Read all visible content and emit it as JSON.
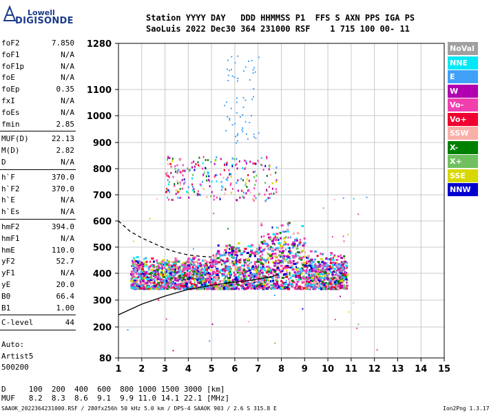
{
  "logo": {
    "line1": "Lowell",
    "line2": "DIGISONDE"
  },
  "header": {
    "row1": "Station YYYY DAY   DDD HHMMSS P1  FFS S AXN PPS IGA PS",
    "row2": "SaoLuis 2022 Dec30 364 231000 RSF    1 715 100 00- 11"
  },
  "params": {
    "group1": [
      {
        "label": "foF2",
        "value": "7.850"
      },
      {
        "label": "foF1",
        "value": "N/A"
      },
      {
        "label": "foF1p",
        "value": "N/A"
      },
      {
        "label": "foE",
        "value": "N/A"
      },
      {
        "label": "foEp",
        "value": "0.35"
      },
      {
        "label": "fxI",
        "value": "N/A"
      },
      {
        "label": "foEs",
        "value": "N/A"
      },
      {
        "label": "fmin",
        "value": "2.85"
      }
    ],
    "group2": [
      {
        "label": "MUF(D)",
        "value": "22.13"
      },
      {
        "label": "M(D)",
        "value": "2.82"
      },
      {
        "label": "D",
        "value": "N/A"
      }
    ],
    "group3": [
      {
        "label": "h`F",
        "value": "370.0"
      },
      {
        "label": "h`F2",
        "value": "370.0"
      },
      {
        "label": "h`E",
        "value": "N/A"
      },
      {
        "label": "h`Es",
        "value": "N/A"
      }
    ],
    "group4": [
      {
        "label": "hmF2",
        "value": "394.0"
      },
      {
        "label": "hmF1",
        "value": "N/A"
      },
      {
        "label": "hmE",
        "value": "110.0"
      },
      {
        "label": "yF2",
        "value": "52.7"
      },
      {
        "label": "yF1",
        "value": "N/A"
      },
      {
        "label": "yE",
        "value": "20.0"
      },
      {
        "label": "B0",
        "value": "66.4"
      },
      {
        "label": "B1",
        "value": "1.00"
      }
    ],
    "group5": [
      {
        "label": "C-level",
        "value": "44"
      }
    ],
    "auto": [
      "Auto:",
      "Artist5",
      "500200"
    ]
  },
  "legend": [
    {
      "label": "NoVal",
      "bg": "#a0a0a0",
      "fg": "#ffffff"
    },
    {
      "label": "NNE",
      "bg": "#00e8f8",
      "fg": "#ffffff"
    },
    {
      "label": "E",
      "bg": "#40a0f8",
      "fg": "#ffffff"
    },
    {
      "label": "W",
      "bg": "#b000b0",
      "fg": "#ffffff"
    },
    {
      "label": "Vo-",
      "bg": "#f040b0",
      "fg": "#ffffff"
    },
    {
      "label": "Vo+",
      "bg": "#f00030",
      "fg": "#ffffff"
    },
    {
      "label": "SSW",
      "bg": "#f8b0a8",
      "fg": "#ffffff"
    },
    {
      "label": "X-",
      "bg": "#008000",
      "fg": "#ffffff"
    },
    {
      "label": "X+",
      "bg": "#70c060",
      "fg": "#ffffff"
    },
    {
      "label": "SSE",
      "bg": "#d8d800",
      "fg": "#ffffff"
    },
    {
      "label": "NNW",
      "bg": "#0000d0",
      "fg": "#ffffff"
    }
  ],
  "footer": {
    "row1": "D     100  200  400  600  800 1000 1500 3000 [km]",
    "row2": "MUF   8.2  8.3  8.6  9.1  9.9 11.0 14.1 22.1 [MHz]",
    "row3": "SAAOK_2022364231000.RSF / 280fx256h 50 kHz 5.0 km / DPS-4 SAAOK 903 / 2.6 S 315.8 E",
    "version": "Ion2Png 1.3.17"
  },
  "chart_data": {
    "type": "scatter",
    "x": [
      1,
      2,
      3,
      4,
      5,
      6,
      7,
      8,
      9,
      10,
      11,
      12,
      13,
      14,
      15
    ],
    "xticks": [
      "1",
      "2",
      "3",
      "4",
      "5",
      "6",
      "7",
      "8",
      "9",
      "10",
      "11",
      "12",
      "13",
      "14",
      "15"
    ],
    "xlim": [
      1,
      15
    ],
    "ylim": [
      80,
      1280
    ],
    "yticks": [
      "80",
      "200",
      "300",
      "400",
      "500",
      "600",
      "700",
      "800",
      "900",
      "1000",
      "1100",
      "1280"
    ],
    "ytick_values": [
      80,
      200,
      300,
      400,
      500,
      600,
      700,
      800,
      900,
      1000,
      1100,
      1280
    ],
    "y_scale": "nonlinear-ionogram",
    "grid": true,
    "traces": [
      {
        "name": "O-trace",
        "x": [
          1.0,
          2.0,
          3.0,
          4.0,
          5.0,
          5.8,
          6.5,
          7.0,
          7.5,
          7.85
        ],
        "y": [
          245,
          285,
          315,
          340,
          355,
          365,
          372,
          378,
          385,
          394
        ]
      },
      {
        "name": "X-trace",
        "x": [
          1.0,
          1.5,
          2.0,
          2.5,
          3.0,
          3.5,
          4.0,
          4.5,
          5.0
        ],
        "y": [
          600,
          560,
          535,
          515,
          495,
          480,
          470,
          465,
          462
        ]
      }
    ],
    "echo_regions": [
      {
        "name": "F-layer echoes",
        "x": [
          1.5,
          10.8
        ],
        "y": [
          345,
          620
        ]
      },
      {
        "name": "multiple-hop echoes",
        "x": [
          2.8,
          7.8
        ],
        "y": [
          670,
          860
        ]
      },
      {
        "name": "scattered high echoes",
        "x": [
          6.0,
          6.8
        ],
        "y": [
          1000,
          1250
        ]
      }
    ]
  }
}
